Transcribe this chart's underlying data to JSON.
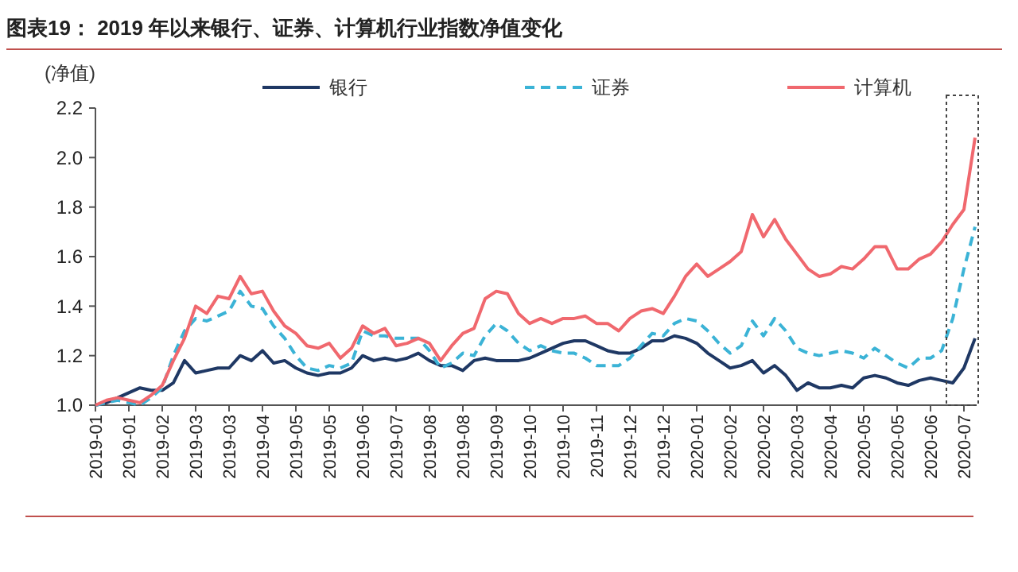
{
  "chart_data": {
    "type": "line",
    "title": "图表19： 2019 年以来银行、证券、计算机行业指数净值变化",
    "ylabel": "(净值)",
    "categories": [
      "2019-01",
      null,
      null,
      "2019-01",
      null,
      null,
      "2019-02",
      null,
      null,
      "2019-03",
      null,
      null,
      "2019-03",
      null,
      null,
      "2019-04",
      null,
      null,
      "2019-05",
      null,
      null,
      "2019-05",
      null,
      null,
      "2019-06",
      null,
      null,
      "2019-07",
      null,
      null,
      "2019-08",
      null,
      null,
      "2019-08",
      null,
      null,
      "2019-09",
      null,
      null,
      "2019-10",
      null,
      null,
      "2019-10",
      null,
      null,
      "2019-11",
      null,
      null,
      "2019-12",
      null,
      null,
      "2019-12",
      null,
      null,
      "2020-01",
      null,
      null,
      "2020-02",
      null,
      null,
      "2020-02",
      null,
      null,
      "2020-03",
      null,
      null,
      "2020-04",
      null,
      null,
      "2020-05",
      null,
      null,
      "2020-05",
      null,
      null,
      "2020-06",
      null,
      null,
      "2020-07",
      null
    ],
    "series": [
      {
        "name": "银行",
        "color": "#1f3864",
        "line_style": "solid",
        "values": [
          1.0,
          1.01,
          1.03,
          1.05,
          1.07,
          1.06,
          1.06,
          1.09,
          1.18,
          1.13,
          1.14,
          1.15,
          1.15,
          1.2,
          1.18,
          1.22,
          1.17,
          1.18,
          1.15,
          1.13,
          1.12,
          1.13,
          1.13,
          1.15,
          1.2,
          1.18,
          1.19,
          1.18,
          1.19,
          1.21,
          1.18,
          1.16,
          1.16,
          1.14,
          1.18,
          1.19,
          1.18,
          1.18,
          1.18,
          1.19,
          1.21,
          1.23,
          1.25,
          1.26,
          1.26,
          1.24,
          1.22,
          1.21,
          1.21,
          1.23,
          1.26,
          1.26,
          1.28,
          1.27,
          1.25,
          1.21,
          1.18,
          1.15,
          1.16,
          1.18,
          1.13,
          1.16,
          1.12,
          1.06,
          1.09,
          1.07,
          1.07,
          1.08,
          1.07,
          1.11,
          1.12,
          1.11,
          1.09,
          1.08,
          1.1,
          1.11,
          1.1,
          1.09,
          1.15,
          1.27
        ]
      },
      {
        "name": "证券",
        "color": "#3bb3d6",
        "line_style": "dashed",
        "values": [
          1.0,
          1.01,
          1.02,
          1.01,
          1.0,
          1.03,
          1.07,
          1.2,
          1.3,
          1.35,
          1.34,
          1.36,
          1.38,
          1.46,
          1.4,
          1.39,
          1.32,
          1.27,
          1.2,
          1.15,
          1.14,
          1.16,
          1.15,
          1.17,
          1.3,
          1.28,
          1.28,
          1.27,
          1.27,
          1.27,
          1.22,
          1.15,
          1.17,
          1.21,
          1.2,
          1.28,
          1.33,
          1.3,
          1.25,
          1.22,
          1.24,
          1.22,
          1.21,
          1.21,
          1.19,
          1.16,
          1.16,
          1.16,
          1.19,
          1.24,
          1.29,
          1.28,
          1.33,
          1.35,
          1.34,
          1.3,
          1.25,
          1.21,
          1.24,
          1.34,
          1.28,
          1.35,
          1.3,
          1.23,
          1.21,
          1.2,
          1.21,
          1.22,
          1.21,
          1.19,
          1.23,
          1.2,
          1.17,
          1.15,
          1.19,
          1.19,
          1.22,
          1.35,
          1.55,
          1.72
        ]
      },
      {
        "name": "计算机",
        "color": "#f0686e",
        "line_style": "solid",
        "values": [
          1.0,
          1.02,
          1.03,
          1.02,
          1.01,
          1.04,
          1.08,
          1.18,
          1.27,
          1.4,
          1.37,
          1.44,
          1.43,
          1.52,
          1.45,
          1.46,
          1.38,
          1.32,
          1.29,
          1.24,
          1.23,
          1.25,
          1.19,
          1.23,
          1.32,
          1.29,
          1.31,
          1.24,
          1.25,
          1.27,
          1.25,
          1.18,
          1.24,
          1.29,
          1.31,
          1.43,
          1.46,
          1.45,
          1.37,
          1.33,
          1.35,
          1.33,
          1.35,
          1.35,
          1.36,
          1.33,
          1.33,
          1.3,
          1.35,
          1.38,
          1.39,
          1.37,
          1.44,
          1.52,
          1.57,
          1.52,
          1.55,
          1.58,
          1.62,
          1.77,
          1.68,
          1.75,
          1.67,
          1.61,
          1.55,
          1.52,
          1.53,
          1.56,
          1.55,
          1.59,
          1.64,
          1.64,
          1.55,
          1.55,
          1.59,
          1.61,
          1.66,
          1.73,
          1.79,
          2.08
        ]
      }
    ],
    "ylim": [
      1.0,
      2.2
    ],
    "yticks": [
      {
        "value": 1.0,
        "label": "1.0"
      },
      {
        "value": 1.2,
        "label": "1.2"
      },
      {
        "value": 1.4,
        "label": "1.4"
      },
      {
        "value": 1.6,
        "label": "1.6"
      },
      {
        "value": 1.8,
        "label": "1.8"
      },
      {
        "value": 2.0,
        "label": "2.0"
      },
      {
        "value": 2.2,
        "label": "2.2"
      }
    ],
    "grid": false,
    "legend": "top"
  }
}
